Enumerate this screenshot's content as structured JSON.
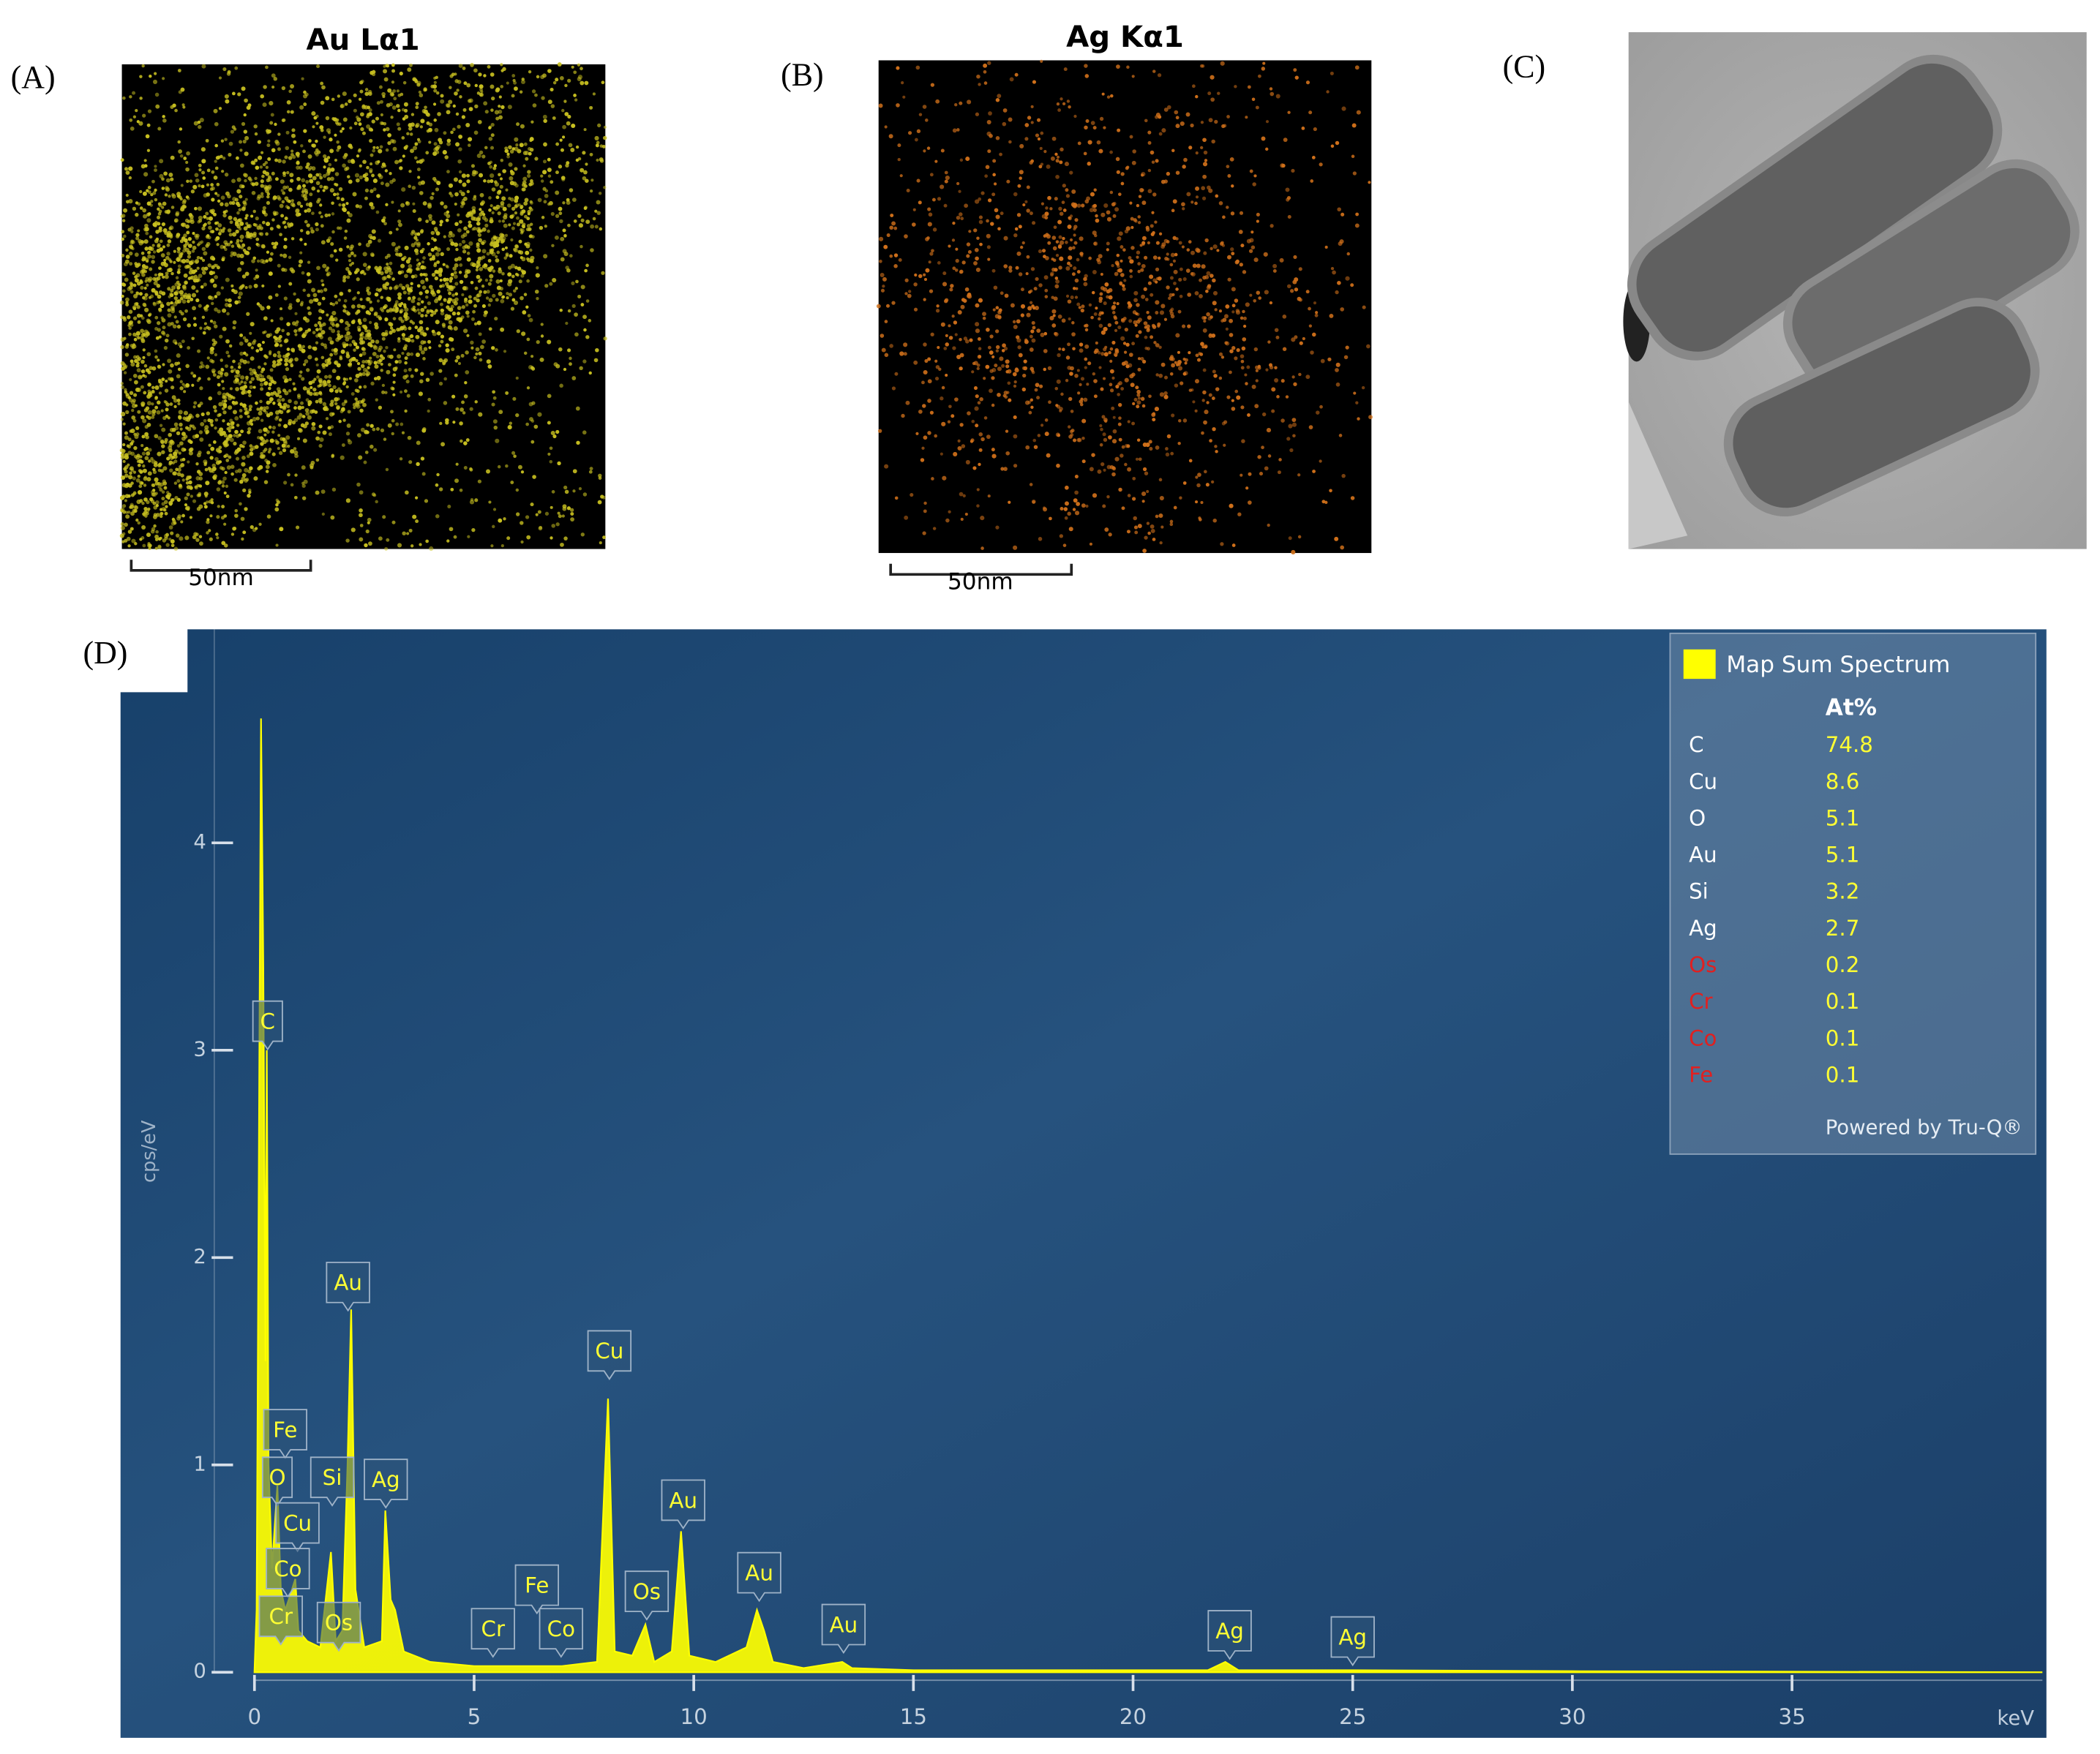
{
  "panels": {
    "a": {
      "letter": "(A)",
      "title": "Au Lα1",
      "scale_bar": "50nm",
      "dot_color": "#c8c020"
    },
    "b": {
      "letter": "(B)",
      "title": "Ag Kα1",
      "scale_bar": "50nm",
      "dot_color": "#d0701a"
    },
    "c": {
      "letter": "(C)"
    },
    "d": {
      "letter": "(D)"
    }
  },
  "chart_data": {
    "type": "area",
    "x_label": "keV",
    "y_label": "cps/eV",
    "xlim": [
      0,
      40.7
    ],
    "ylim": [
      0,
      5.03
    ],
    "xticks": [
      0,
      5,
      10,
      15,
      20,
      25,
      30,
      35
    ],
    "yticks": [
      0,
      1,
      2,
      3,
      4
    ],
    "x": [
      0,
      0.05,
      0.1,
      0.15,
      0.2,
      0.25,
      0.28,
      0.32,
      0.4,
      0.52,
      0.6,
      0.7,
      0.78,
      0.93,
      1.0,
      1.2,
      1.5,
      1.74,
      1.85,
      2.0,
      2.12,
      2.2,
      2.3,
      2.5,
      2.9,
      2.98,
      3.1,
      3.2,
      3.4,
      4.0,
      5.0,
      6.0,
      7.0,
      7.8,
      8.05,
      8.2,
      8.6,
      8.9,
      9.1,
      9.5,
      9.71,
      9.9,
      10.5,
      11.2,
      11.44,
      11.6,
      11.8,
      12.5,
      13.38,
      13.6,
      15,
      20,
      21.7,
      22.1,
      22.4,
      25,
      30,
      40.7
    ],
    "series": [
      {
        "name": "Map Sum Spectrum",
        "color": "#ffff00",
        "values": [
          0,
          0.3,
          2.5,
          4.6,
          3.4,
          1.5,
          3.0,
          1.0,
          0.5,
          0.9,
          0.4,
          0.3,
          0.35,
          0.45,
          0.2,
          0.15,
          0.12,
          0.58,
          0.15,
          0.2,
          1.0,
          1.75,
          0.4,
          0.12,
          0.15,
          0.78,
          0.35,
          0.3,
          0.1,
          0.05,
          0.03,
          0.03,
          0.03,
          0.05,
          1.32,
          0.1,
          0.08,
          0.23,
          0.05,
          0.1,
          0.68,
          0.08,
          0.05,
          0.12,
          0.3,
          0.2,
          0.05,
          0.02,
          0.05,
          0.02,
          0.01,
          0.01,
          0.01,
          0.05,
          0.01,
          0.01,
          0.005,
          0
        ]
      }
    ],
    "annotations": [
      {
        "text": "C",
        "x": 0.3,
        "y": 3.14
      },
      {
        "text": "Au",
        "x": 2.13,
        "y": 1.88
      },
      {
        "text": "Fe",
        "x": 0.7,
        "y": 1.17
      },
      {
        "text": "O",
        "x": 0.52,
        "y": 0.94
      },
      {
        "text": "Si",
        "x": 1.77,
        "y": 0.94
      },
      {
        "text": "Ag",
        "x": 2.99,
        "y": 0.93
      },
      {
        "text": "Cu",
        "x": 0.98,
        "y": 0.72
      },
      {
        "text": "Co",
        "x": 0.76,
        "y": 0.5
      },
      {
        "text": "Cr",
        "x": 0.6,
        "y": 0.27
      },
      {
        "text": "Os",
        "x": 1.92,
        "y": 0.24
      },
      {
        "text": "Cr",
        "x": 5.43,
        "y": 0.21
      },
      {
        "text": "Fe",
        "x": 6.43,
        "y": 0.42
      },
      {
        "text": "Co",
        "x": 6.98,
        "y": 0.21
      },
      {
        "text": "Cu",
        "x": 8.08,
        "y": 1.55
      },
      {
        "text": "Os",
        "x": 8.93,
        "y": 0.39
      },
      {
        "text": "Au",
        "x": 9.76,
        "y": 0.83
      },
      {
        "text": "Au",
        "x": 11.49,
        "y": 0.48
      },
      {
        "text": "Au",
        "x": 13.41,
        "y": 0.23
      },
      {
        "text": "Ag",
        "x": 22.2,
        "y": 0.2
      },
      {
        "text": "Ag",
        "x": 25.0,
        "y": 0.17
      }
    ],
    "legend_table": {
      "header": "At%",
      "footer": "Powered by Tru-Q®",
      "rows": [
        {
          "element": "C",
          "at_percent": 74.8,
          "color": "#ffffff"
        },
        {
          "element": "Cu",
          "at_percent": 8.6,
          "color": "#ffffff"
        },
        {
          "element": "O",
          "at_percent": 5.1,
          "color": "#ffffff"
        },
        {
          "element": "Au",
          "at_percent": 5.1,
          "color": "#ffffff"
        },
        {
          "element": "Si",
          "at_percent": 3.2,
          "color": "#ffffff"
        },
        {
          "element": "Ag",
          "at_percent": 2.7,
          "color": "#ffffff"
        },
        {
          "element": "Os",
          "at_percent": 0.2,
          "color": "#e02020"
        },
        {
          "element": "Cr",
          "at_percent": 0.1,
          "color": "#e02020"
        },
        {
          "element": "Co",
          "at_percent": 0.1,
          "color": "#e02020"
        },
        {
          "element": "Fe",
          "at_percent": 0.1,
          "color": "#e02020"
        }
      ]
    }
  }
}
